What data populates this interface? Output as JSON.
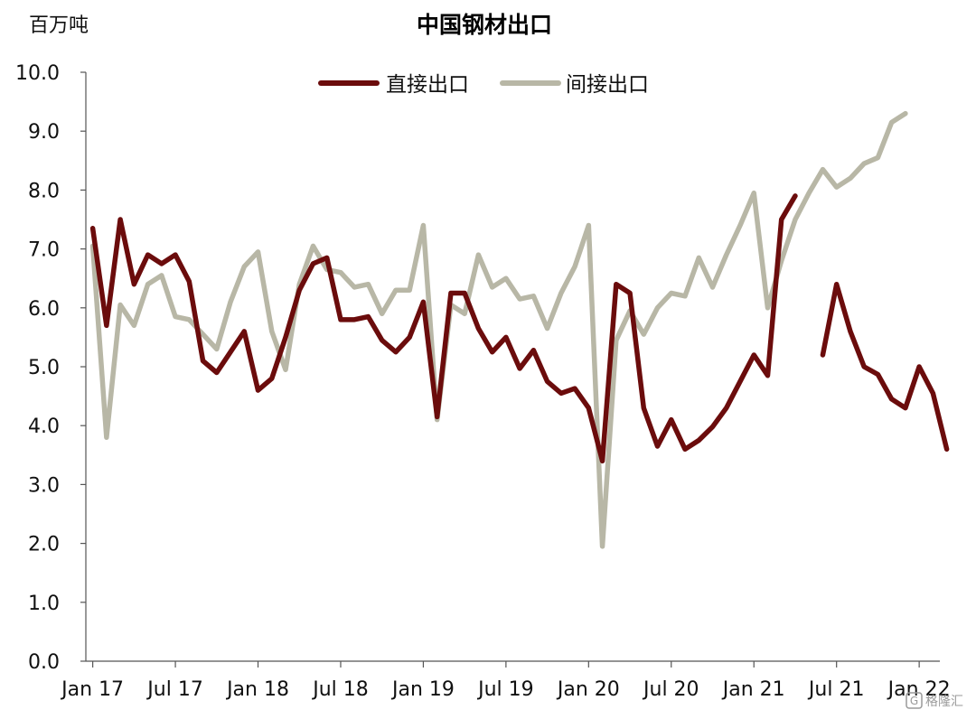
{
  "chart_data": {
    "type": "line",
    "title": "中国钢材出口",
    "ylabel": "百万吨",
    "ylim": [
      0,
      10
    ],
    "yticks": [
      "0.0",
      "1.0",
      "2.0",
      "3.0",
      "4.0",
      "5.0",
      "6.0",
      "7.0",
      "8.0",
      "9.0",
      "10.0"
    ],
    "x_ticks": [
      {
        "label": "Jan 17",
        "index": 0
      },
      {
        "label": "Jul 17",
        "index": 6
      },
      {
        "label": "Jan 18",
        "index": 12
      },
      {
        "label": "Jul 18",
        "index": 18
      },
      {
        "label": "Jan 19",
        "index": 24
      },
      {
        "label": "Jul 19",
        "index": 30
      },
      {
        "label": "Jan 20",
        "index": 36
      },
      {
        "label": "Jul 20",
        "index": 42
      },
      {
        "label": "Jan 21",
        "index": 48
      },
      {
        "label": "Jul 21",
        "index": 54
      },
      {
        "label": "Jan 22",
        "index": 60
      }
    ],
    "x_range": [
      -0.5,
      61.5
    ],
    "legend_position": "top-center",
    "series": [
      {
        "name": "直接出口",
        "color": "#6b0c0c",
        "values": [
          7.35,
          5.7,
          7.5,
          6.4,
          6.9,
          6.75,
          6.9,
          6.45,
          5.1,
          4.9,
          5.25,
          5.6,
          4.6,
          4.8,
          5.5,
          6.3,
          6.75,
          6.85,
          5.8,
          5.8,
          5.85,
          5.45,
          5.25,
          5.5,
          6.1,
          4.15,
          6.25,
          6.25,
          5.65,
          5.25,
          5.5,
          4.97,
          5.28,
          4.75,
          4.55,
          4.63,
          4.3,
          3.4,
          6.4,
          6.25,
          4.3,
          3.65,
          4.1,
          3.6,
          3.75,
          3.98,
          4.3,
          4.75,
          5.2,
          4.85,
          7.5,
          7.9,
          null,
          5.2,
          6.4,
          5.6,
          5.0,
          4.87,
          4.45,
          4.3,
          5.0,
          4.55,
          3.6
        ]
      },
      {
        "name": "间接出口",
        "color": "#b8b7a6",
        "values": [
          7.05,
          3.8,
          6.05,
          5.7,
          6.4,
          6.55,
          5.85,
          5.8,
          5.55,
          5.3,
          6.1,
          6.7,
          6.95,
          5.6,
          4.95,
          6.4,
          7.05,
          6.65,
          6.6,
          6.35,
          6.4,
          5.9,
          6.3,
          6.3,
          7.4,
          4.1,
          6.05,
          5.9,
          6.9,
          6.35,
          6.5,
          6.15,
          6.2,
          5.65,
          6.25,
          6.7,
          7.4,
          1.95,
          5.45,
          5.95,
          5.55,
          6.0,
          6.25,
          6.2,
          6.85,
          6.35,
          6.9,
          7.4,
          7.95,
          6.0,
          6.8,
          7.5,
          7.95,
          8.35,
          8.05,
          8.2,
          8.45,
          8.55,
          9.15,
          9.3,
          null,
          null,
          null
        ]
      }
    ]
  },
  "watermark": "格隆汇"
}
